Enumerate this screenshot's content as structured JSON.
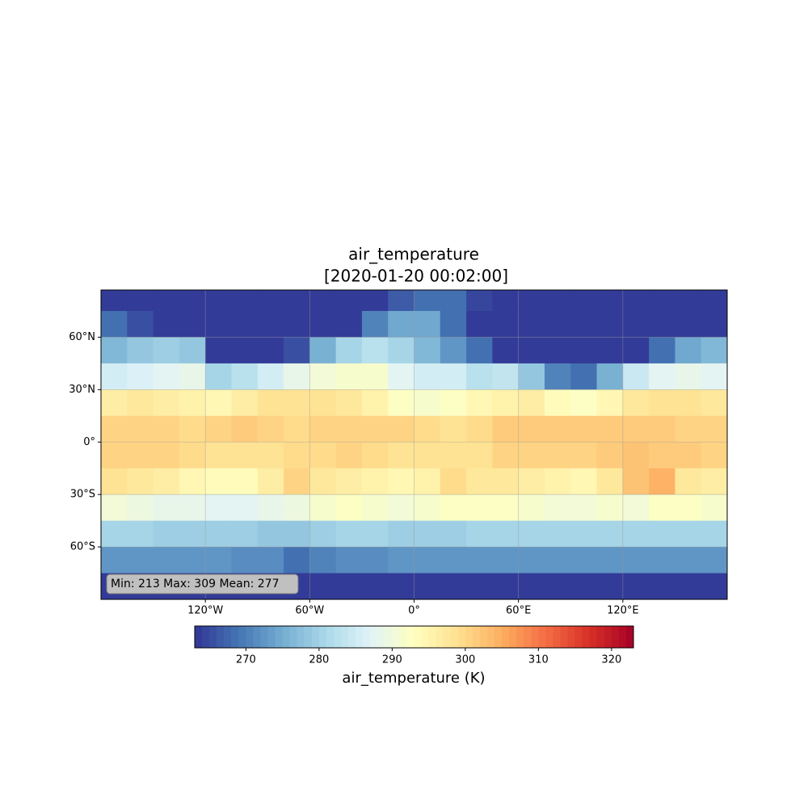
{
  "chart_data": {
    "type": "gridmap",
    "title": [
      "air_temperature",
      "[2020-01-20 00:02:00]"
    ],
    "stats_text": "Min: 213 Max: 309 Mean: 277",
    "colorbar_label": "air_temperature (K)",
    "xlim": [
      -180,
      180
    ],
    "ylim": [
      -90,
      87
    ],
    "xticks": [
      {
        "value": -120,
        "label": "120°W"
      },
      {
        "value": -60,
        "label": "60°W"
      },
      {
        "value": 0,
        "label": "0°"
      },
      {
        "value": 60,
        "label": "60°E"
      },
      {
        "value": 120,
        "label": "120°E"
      }
    ],
    "yticks": [
      {
        "value": 60,
        "label": "60°N"
      },
      {
        "value": 30,
        "label": "30°N"
      },
      {
        "value": 0,
        "label": "0°"
      },
      {
        "value": -30,
        "label": "30°S"
      },
      {
        "value": -60,
        "label": "60°S"
      }
    ],
    "grid": true,
    "colormap": [
      "#313695",
      "#4575b4",
      "#74add1",
      "#abd9e9",
      "#e0f3f8",
      "#ffffbf",
      "#fee090",
      "#fdae61",
      "#f46d43",
      "#d73027",
      "#a50026"
    ],
    "clim": [
      263,
      323
    ],
    "cticks": [
      270,
      280,
      290,
      300,
      310,
      320
    ],
    "lon_edges": [
      -180,
      -165,
      -150,
      -135,
      -120,
      -105,
      -90,
      -75,
      -60,
      -45,
      -30,
      -15,
      0,
      15,
      30,
      45,
      60,
      75,
      90,
      105,
      120,
      135,
      150,
      165,
      180
    ],
    "lat_edges": [
      90,
      75,
      60,
      45,
      30,
      15,
      0,
      -15,
      -30,
      -45,
      -60,
      -75,
      -90
    ],
    "values": [
      [
        255,
        255,
        255,
        255,
        255,
        255,
        255,
        255,
        255,
        255,
        262,
        266,
        268,
        268,
        264,
        258,
        255,
        255,
        255,
        255,
        255,
        255,
        255,
        255
      ],
      [
        268,
        265,
        260,
        255,
        250,
        250,
        252,
        255,
        258,
        255,
        270,
        274,
        274,
        268,
        262,
        258,
        255,
        255,
        255,
        255,
        255,
        258,
        260,
        262
      ],
      [
        276,
        278,
        279,
        278,
        262,
        258,
        260,
        265,
        275,
        280,
        282,
        280,
        276,
        272,
        268,
        262,
        258,
        256,
        255,
        255,
        258,
        268,
        274,
        276
      ],
      [
        285,
        286,
        287,
        288,
        280,
        282,
        285,
        288,
        290,
        291,
        291,
        287,
        285,
        285,
        282,
        283,
        278,
        270,
        268,
        275,
        284,
        287,
        288,
        287
      ],
      [
        296,
        297,
        296,
        295,
        294,
        296,
        298,
        298,
        298,
        297,
        295,
        292,
        291,
        292,
        294,
        295,
        296,
        293,
        292,
        294,
        297,
        298,
        298,
        297
      ],
      [
        300,
        300,
        300,
        299,
        300,
        301,
        300,
        299,
        300,
        300,
        300,
        300,
        299,
        298,
        299,
        301,
        301,
        301,
        301,
        301,
        301,
        301,
        300,
        300
      ],
      [
        300,
        300,
        300,
        299,
        298,
        298,
        298,
        299,
        299,
        300,
        299,
        298,
        298,
        298,
        298,
        300,
        300,
        300,
        300,
        301,
        302,
        301,
        301,
        300
      ],
      [
        298,
        297,
        296,
        294,
        293,
        293,
        296,
        300,
        297,
        296,
        295,
        294,
        295,
        299,
        297,
        297,
        296,
        295,
        294,
        297,
        302,
        304,
        297,
        296
      ],
      [
        290,
        289,
        288,
        288,
        287,
        287,
        288,
        289,
        291,
        292,
        291,
        290,
        291,
        292,
        292,
        292,
        291,
        290,
        290,
        291,
        290,
        292,
        292,
        291
      ],
      [
        280,
        280,
        279,
        279,
        279,
        279,
        278,
        278,
        279,
        280,
        280,
        279,
        279,
        279,
        280,
        280,
        280,
        280,
        280,
        280,
        280,
        280,
        280,
        280
      ],
      [
        272,
        272,
        272,
        272,
        272,
        271,
        271,
        268,
        270,
        271,
        271,
        272,
        272,
        272,
        272,
        272,
        272,
        272,
        272,
        272,
        272,
        272,
        272,
        272
      ],
      [
        252,
        252,
        252,
        252,
        252,
        252,
        252,
        252,
        252,
        252,
        252,
        252,
        252,
        252,
        252,
        252,
        252,
        252,
        252,
        252,
        252,
        252,
        252,
        252
      ]
    ]
  }
}
